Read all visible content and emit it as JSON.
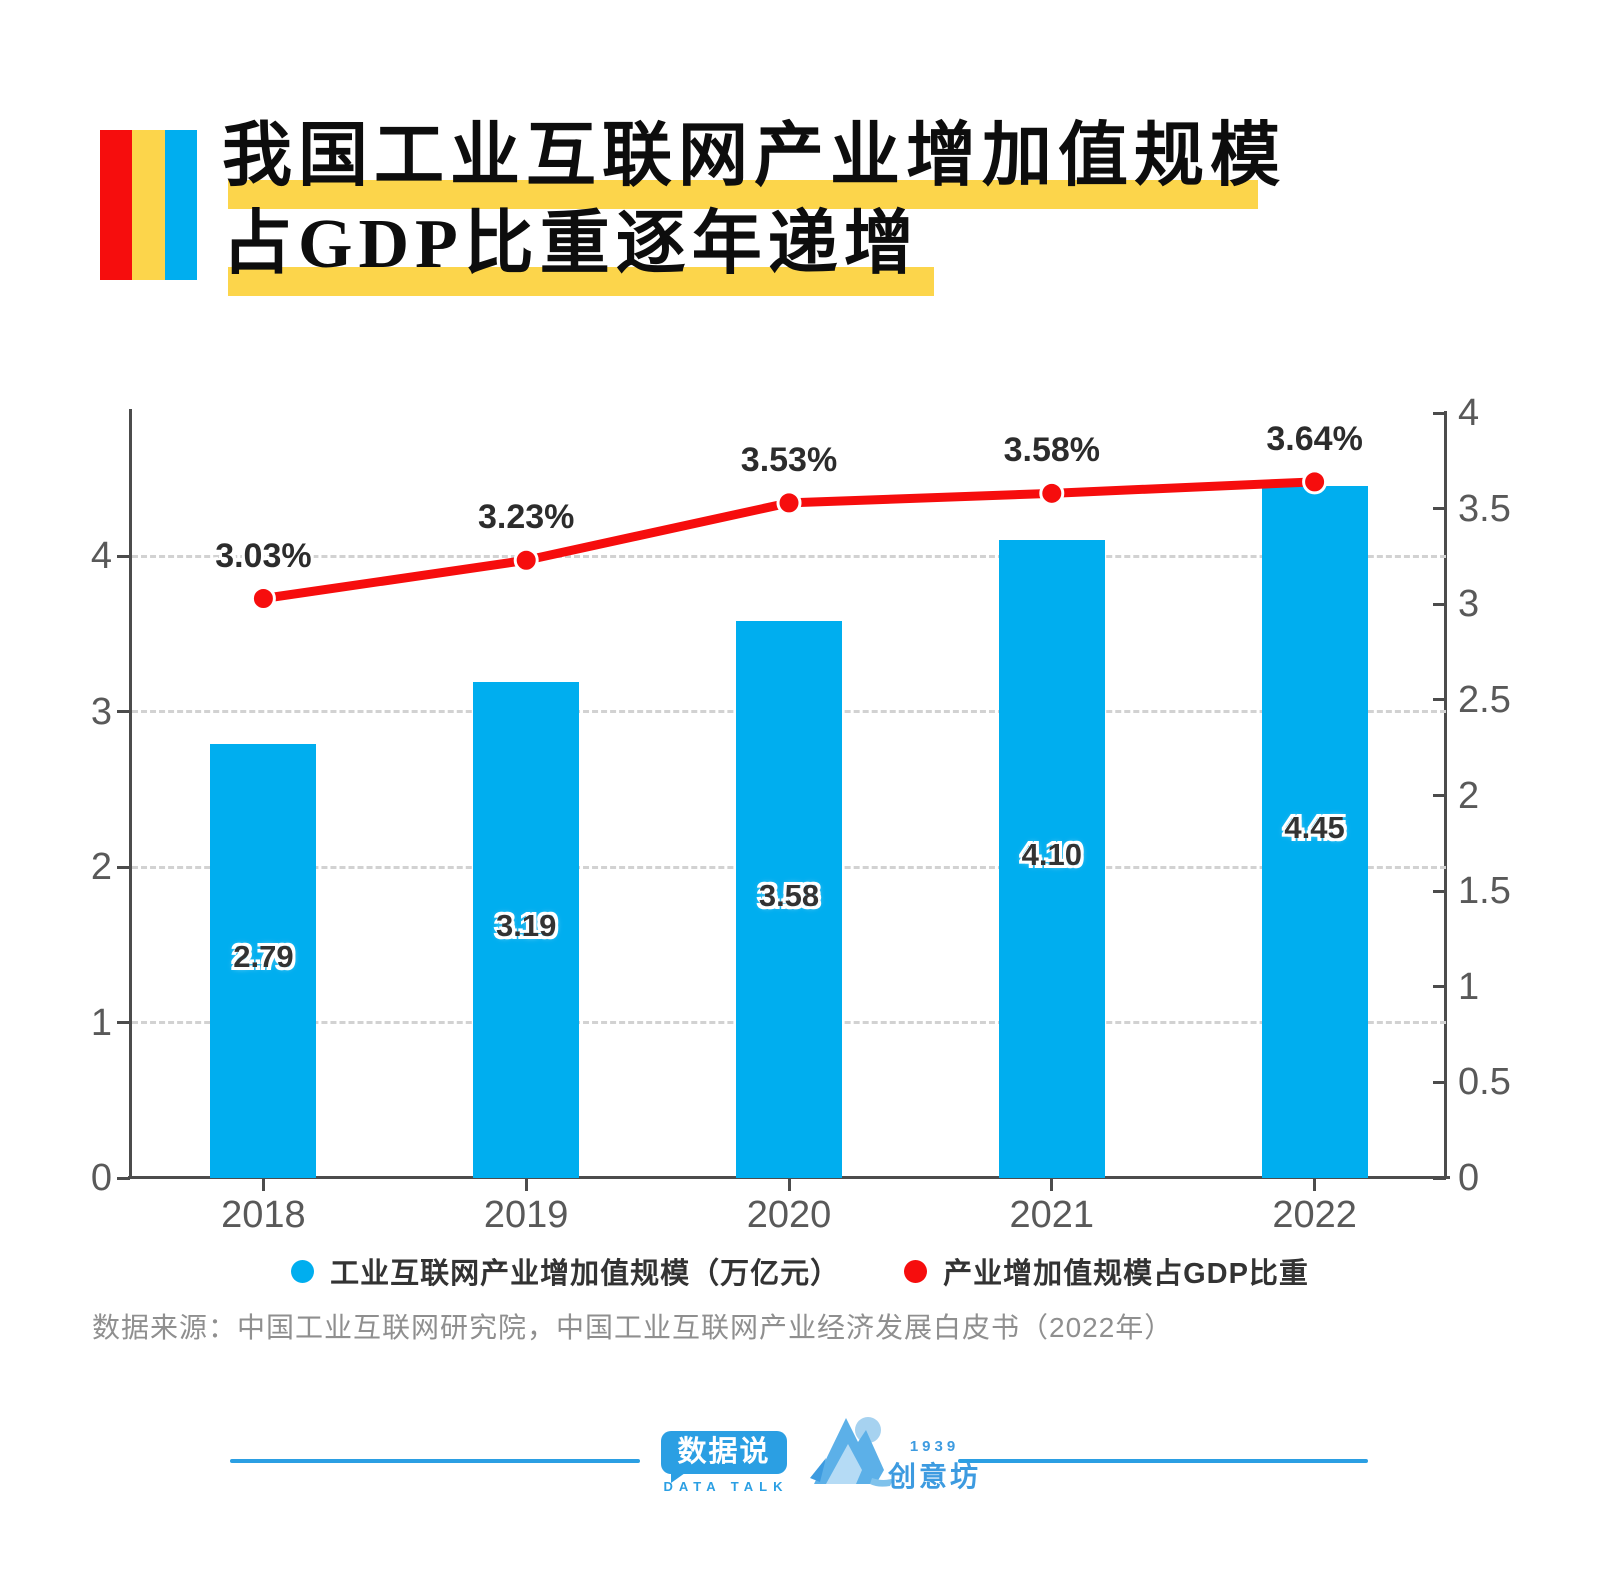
{
  "title": {
    "line1": "我国工业互联网产业增加值规模",
    "line2": "占GDP比重逐年递增"
  },
  "chart_data": {
    "type": "bar",
    "categories": [
      "2018",
      "2019",
      "2020",
      "2021",
      "2022"
    ],
    "series": [
      {
        "name": "工业互联网产业增加值规模（万亿元）",
        "kind": "bar",
        "axis": "left",
        "values": [
          2.79,
          3.19,
          3.58,
          4.1,
          4.45
        ],
        "labels": [
          "2.79",
          "3.19",
          "3.58",
          "4.10",
          "4.45"
        ],
        "color": "#00aeef"
      },
      {
        "name": "产业增加值规模占GDP比重",
        "kind": "line",
        "axis": "right",
        "values": [
          3.03,
          3.23,
          3.53,
          3.58,
          3.64
        ],
        "labels": [
          "3.03%",
          "3.23%",
          "3.53%",
          "3.58%",
          "3.64%"
        ],
        "color": "#f60d0d"
      }
    ],
    "left_axis": {
      "ticks": [
        "0",
        "1",
        "2",
        "3",
        "4"
      ],
      "tick_values": [
        0,
        1,
        2,
        3,
        4
      ],
      "min": 0,
      "max": 4
    },
    "right_axis": {
      "ticks": [
        "0",
        "0.5",
        "1",
        "1.5",
        "2",
        "2.5",
        "3",
        "3.5",
        "4"
      ],
      "tick_values": [
        0,
        0.5,
        1,
        1.5,
        2,
        2.5,
        3,
        3.5,
        4
      ],
      "min": 0,
      "max": 4
    },
    "grid": "dashed horizontal lines at left-axis integers 1-4",
    "legend_position": "bottom"
  },
  "legend": [
    {
      "label": "工业互联网产业增加值规模（万亿元）",
      "color": "#00aeef"
    },
    {
      "label": "产业增加值规模占GDP比重",
      "color": "#f60d0d"
    }
  ],
  "source": "数据来源：中国工业互联网研究院，中国工业互联网产业经济发展白皮书（2022年）",
  "footer": {
    "logo1_text": "数据说",
    "logo1_sub": "DATA TALK",
    "logo2_year": "1939",
    "logo2_name": "创意坊"
  },
  "colors": {
    "bar_blue": "#00aeef",
    "line_red": "#f60d0d",
    "accent_yellow": "#fcd54b",
    "accent_red": "#f60d0d",
    "footer_blue": "#2b9fe3"
  }
}
